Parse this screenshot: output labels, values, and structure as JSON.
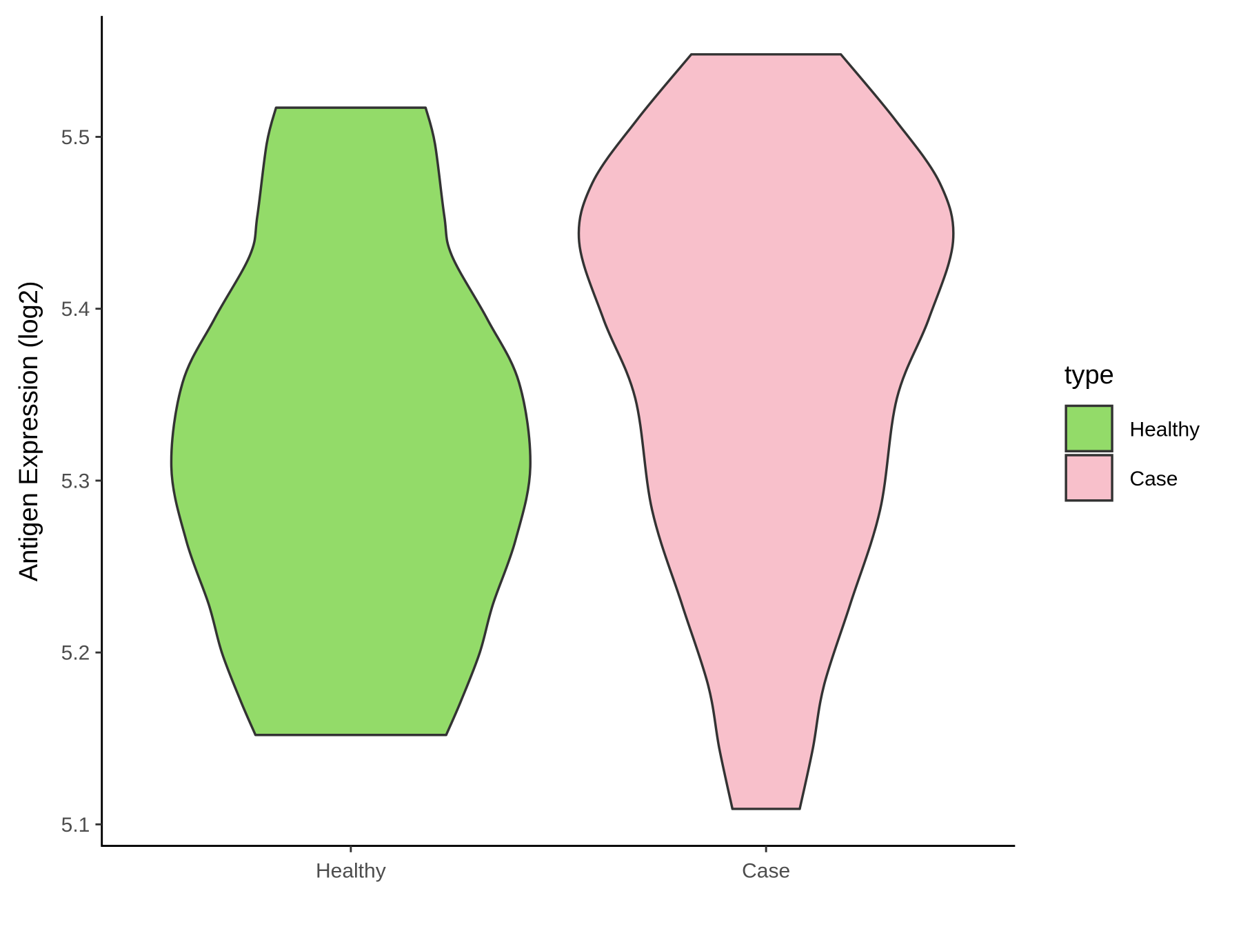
{
  "chart_data": {
    "type": "violin",
    "title": "",
    "xlabel": "",
    "ylabel": "Antigen Expression (log2)",
    "ylim": [
      5.088,
      5.57
    ],
    "yticks": [
      "5.1",
      "5.2",
      "5.3",
      "5.4",
      "5.5"
    ],
    "categories": [
      "Healthy",
      "Case"
    ],
    "grid": false,
    "legend": {
      "title": "type",
      "position": "right",
      "entries": [
        "Healthy",
        "Case"
      ]
    },
    "outline_color": "#333333",
    "series": [
      {
        "name": "Healthy",
        "color": "#93DB69",
        "min": 5.152,
        "max": 5.517,
        "profile": [
          [
            5.517,
            0.4
          ],
          [
            5.496,
            0.45
          ],
          [
            5.454,
            0.5
          ],
          [
            5.431,
            0.54
          ],
          [
            5.394,
            0.73
          ],
          [
            5.357,
            0.9
          ],
          [
            5.308,
            0.96
          ],
          [
            5.265,
            0.88
          ],
          [
            5.228,
            0.76
          ],
          [
            5.2,
            0.69
          ],
          [
            5.172,
            0.59
          ],
          [
            5.152,
            0.51
          ]
        ]
      },
      {
        "name": "Case",
        "color": "#F8C0CB",
        "min": 5.109,
        "max": 5.548,
        "profile": [
          [
            5.548,
            0.4
          ],
          [
            5.51,
            0.69
          ],
          [
            5.473,
            0.93
          ],
          [
            5.439,
            1.0
          ],
          [
            5.394,
            0.87
          ],
          [
            5.348,
            0.7
          ],
          [
            5.283,
            0.61
          ],
          [
            5.228,
            0.45
          ],
          [
            5.181,
            0.31
          ],
          [
            5.144,
            0.25
          ],
          [
            5.109,
            0.18
          ]
        ]
      }
    ]
  }
}
